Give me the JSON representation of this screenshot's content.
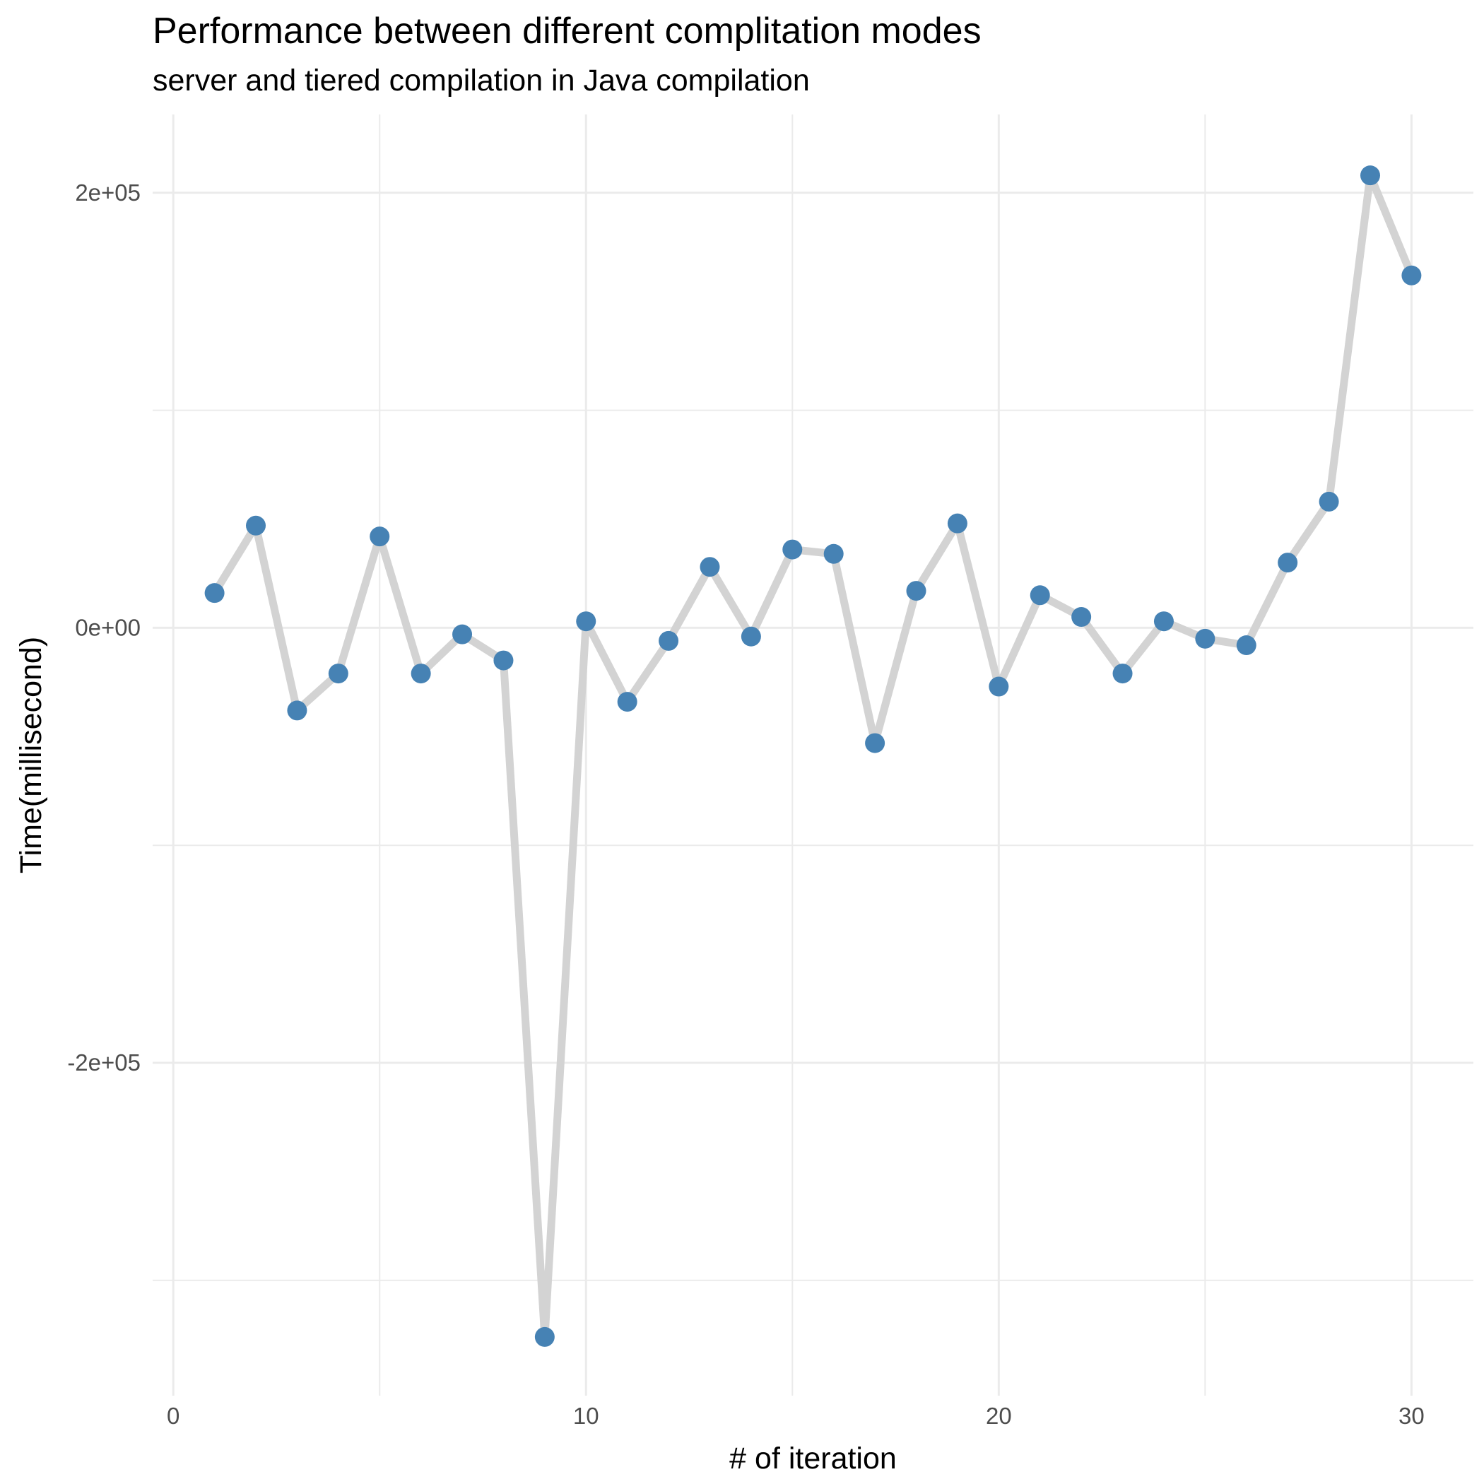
{
  "chart_data": {
    "type": "line",
    "title": "Performance between different complitation modes",
    "subtitle": "server and tiered compilation in Java compilation",
    "xlabel": "# of iteration",
    "ylabel": "Time(millisecond)",
    "xlim": [
      -0.5,
      31.5
    ],
    "ylim": [
      -353000,
      236000
    ],
    "x_ticks": [
      {
        "value": 0,
        "label": "0"
      },
      {
        "value": 10,
        "label": "10"
      },
      {
        "value": 20,
        "label": "20"
      },
      {
        "value": 30,
        "label": "30"
      }
    ],
    "x_minor_ticks": [
      5,
      15,
      25
    ],
    "y_ticks": [
      {
        "value": 200000,
        "label": "2e+05"
      },
      {
        "value": 0,
        "label": "0e+00"
      },
      {
        "value": -200000,
        "label": "-2e+05"
      }
    ],
    "y_minor_ticks": [
      100000,
      -100000,
      -300000
    ],
    "grid": true,
    "line_color": "#d3d3d3",
    "point_color": "#4682b4",
    "series": [
      {
        "x": [
          1,
          2,
          3,
          4,
          5,
          6,
          7,
          8,
          9,
          10,
          11,
          12,
          13,
          14,
          15,
          16,
          17,
          18,
          19,
          20,
          21,
          22,
          23,
          24,
          25,
          26,
          27,
          28,
          29,
          30
        ],
        "y": [
          16000,
          47000,
          -38000,
          -21000,
          42000,
          -21000,
          -3000,
          -15000,
          -326000,
          3000,
          -34000,
          -6000,
          28000,
          -4000,
          36000,
          34000,
          -53000,
          17000,
          48000,
          -27000,
          15000,
          5000,
          -21000,
          3000,
          -5000,
          -8000,
          30000,
          58000,
          208000,
          162000
        ]
      }
    ]
  }
}
